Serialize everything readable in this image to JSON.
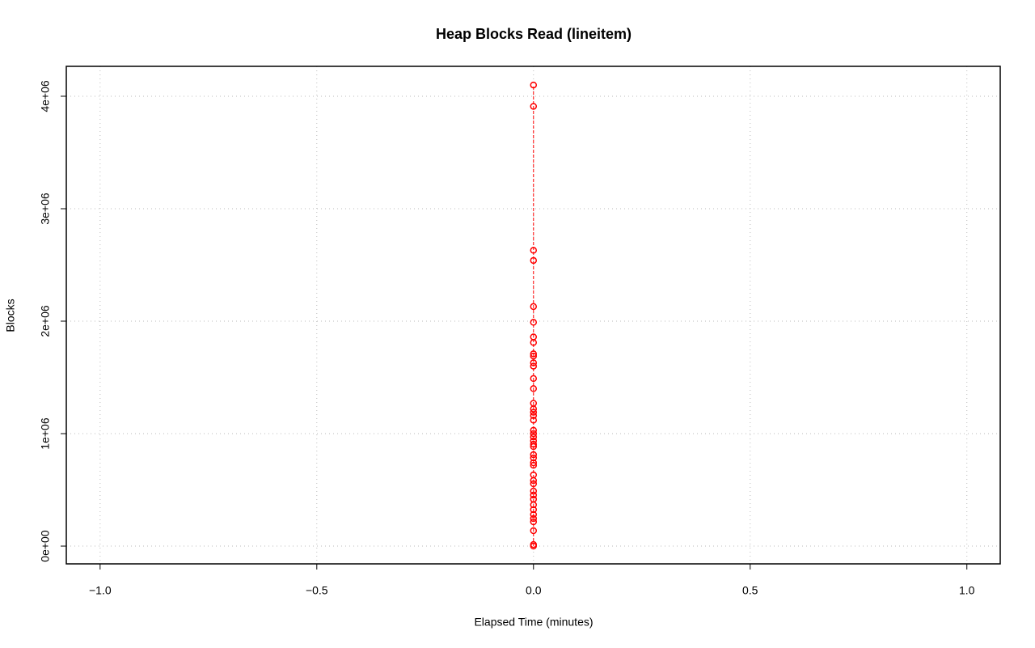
{
  "chart_data": {
    "type": "scatter",
    "title": "Heap Blocks Read (lineitem)",
    "xlabel": "Elapsed Time (minutes)",
    "ylabel": "Blocks",
    "xlim": [
      -1.078,
      1.077
    ],
    "ylim": [
      -158000,
      4266000
    ],
    "xticks": [
      {
        "value": -1,
        "label": "−1.0"
      },
      {
        "value": -0.5,
        "label": "−0.5"
      },
      {
        "value": 0,
        "label": "0.0"
      },
      {
        "value": 0.5,
        "label": "0.5"
      },
      {
        "value": 1,
        "label": "1.0"
      }
    ],
    "yticks": [
      {
        "value": 0,
        "label": "0e+00"
      },
      {
        "value": 1000000,
        "label": "1e+06"
      },
      {
        "value": 2000000,
        "label": "2e+06"
      },
      {
        "value": 3000000,
        "label": "3e+06"
      },
      {
        "value": 4000000,
        "label": "4e+06"
      }
    ],
    "grid": true,
    "series": [
      {
        "color": "#ff0000",
        "x": [
          0,
          0,
          0,
          0,
          0,
          0,
          0,
          0,
          0,
          0,
          0,
          0,
          0,
          0,
          0,
          0,
          0,
          0,
          0,
          0,
          0,
          0,
          0,
          0,
          0,
          0,
          0,
          0,
          0,
          0,
          0,
          0,
          0,
          0,
          0,
          0,
          0,
          0,
          0,
          0,
          0,
          0,
          0
        ],
        "values": [
          0,
          14000,
          137000,
          216000,
          245000,
          281000,
          324000,
          367000,
          417000,
          453000,
          489000,
          554000,
          583000,
          633000,
          719000,
          741000,
          784000,
          813000,
          885000,
          906000,
          935000,
          970000,
          1000000,
          1030000,
          1120000,
          1160000,
          1190000,
          1220000,
          1270000,
          1400000,
          1490000,
          1600000,
          1630000,
          1690000,
          1710000,
          1810000,
          1860000,
          1990000,
          2130000,
          2540000,
          2630000,
          3910000,
          4100000
        ]
      }
    ]
  }
}
